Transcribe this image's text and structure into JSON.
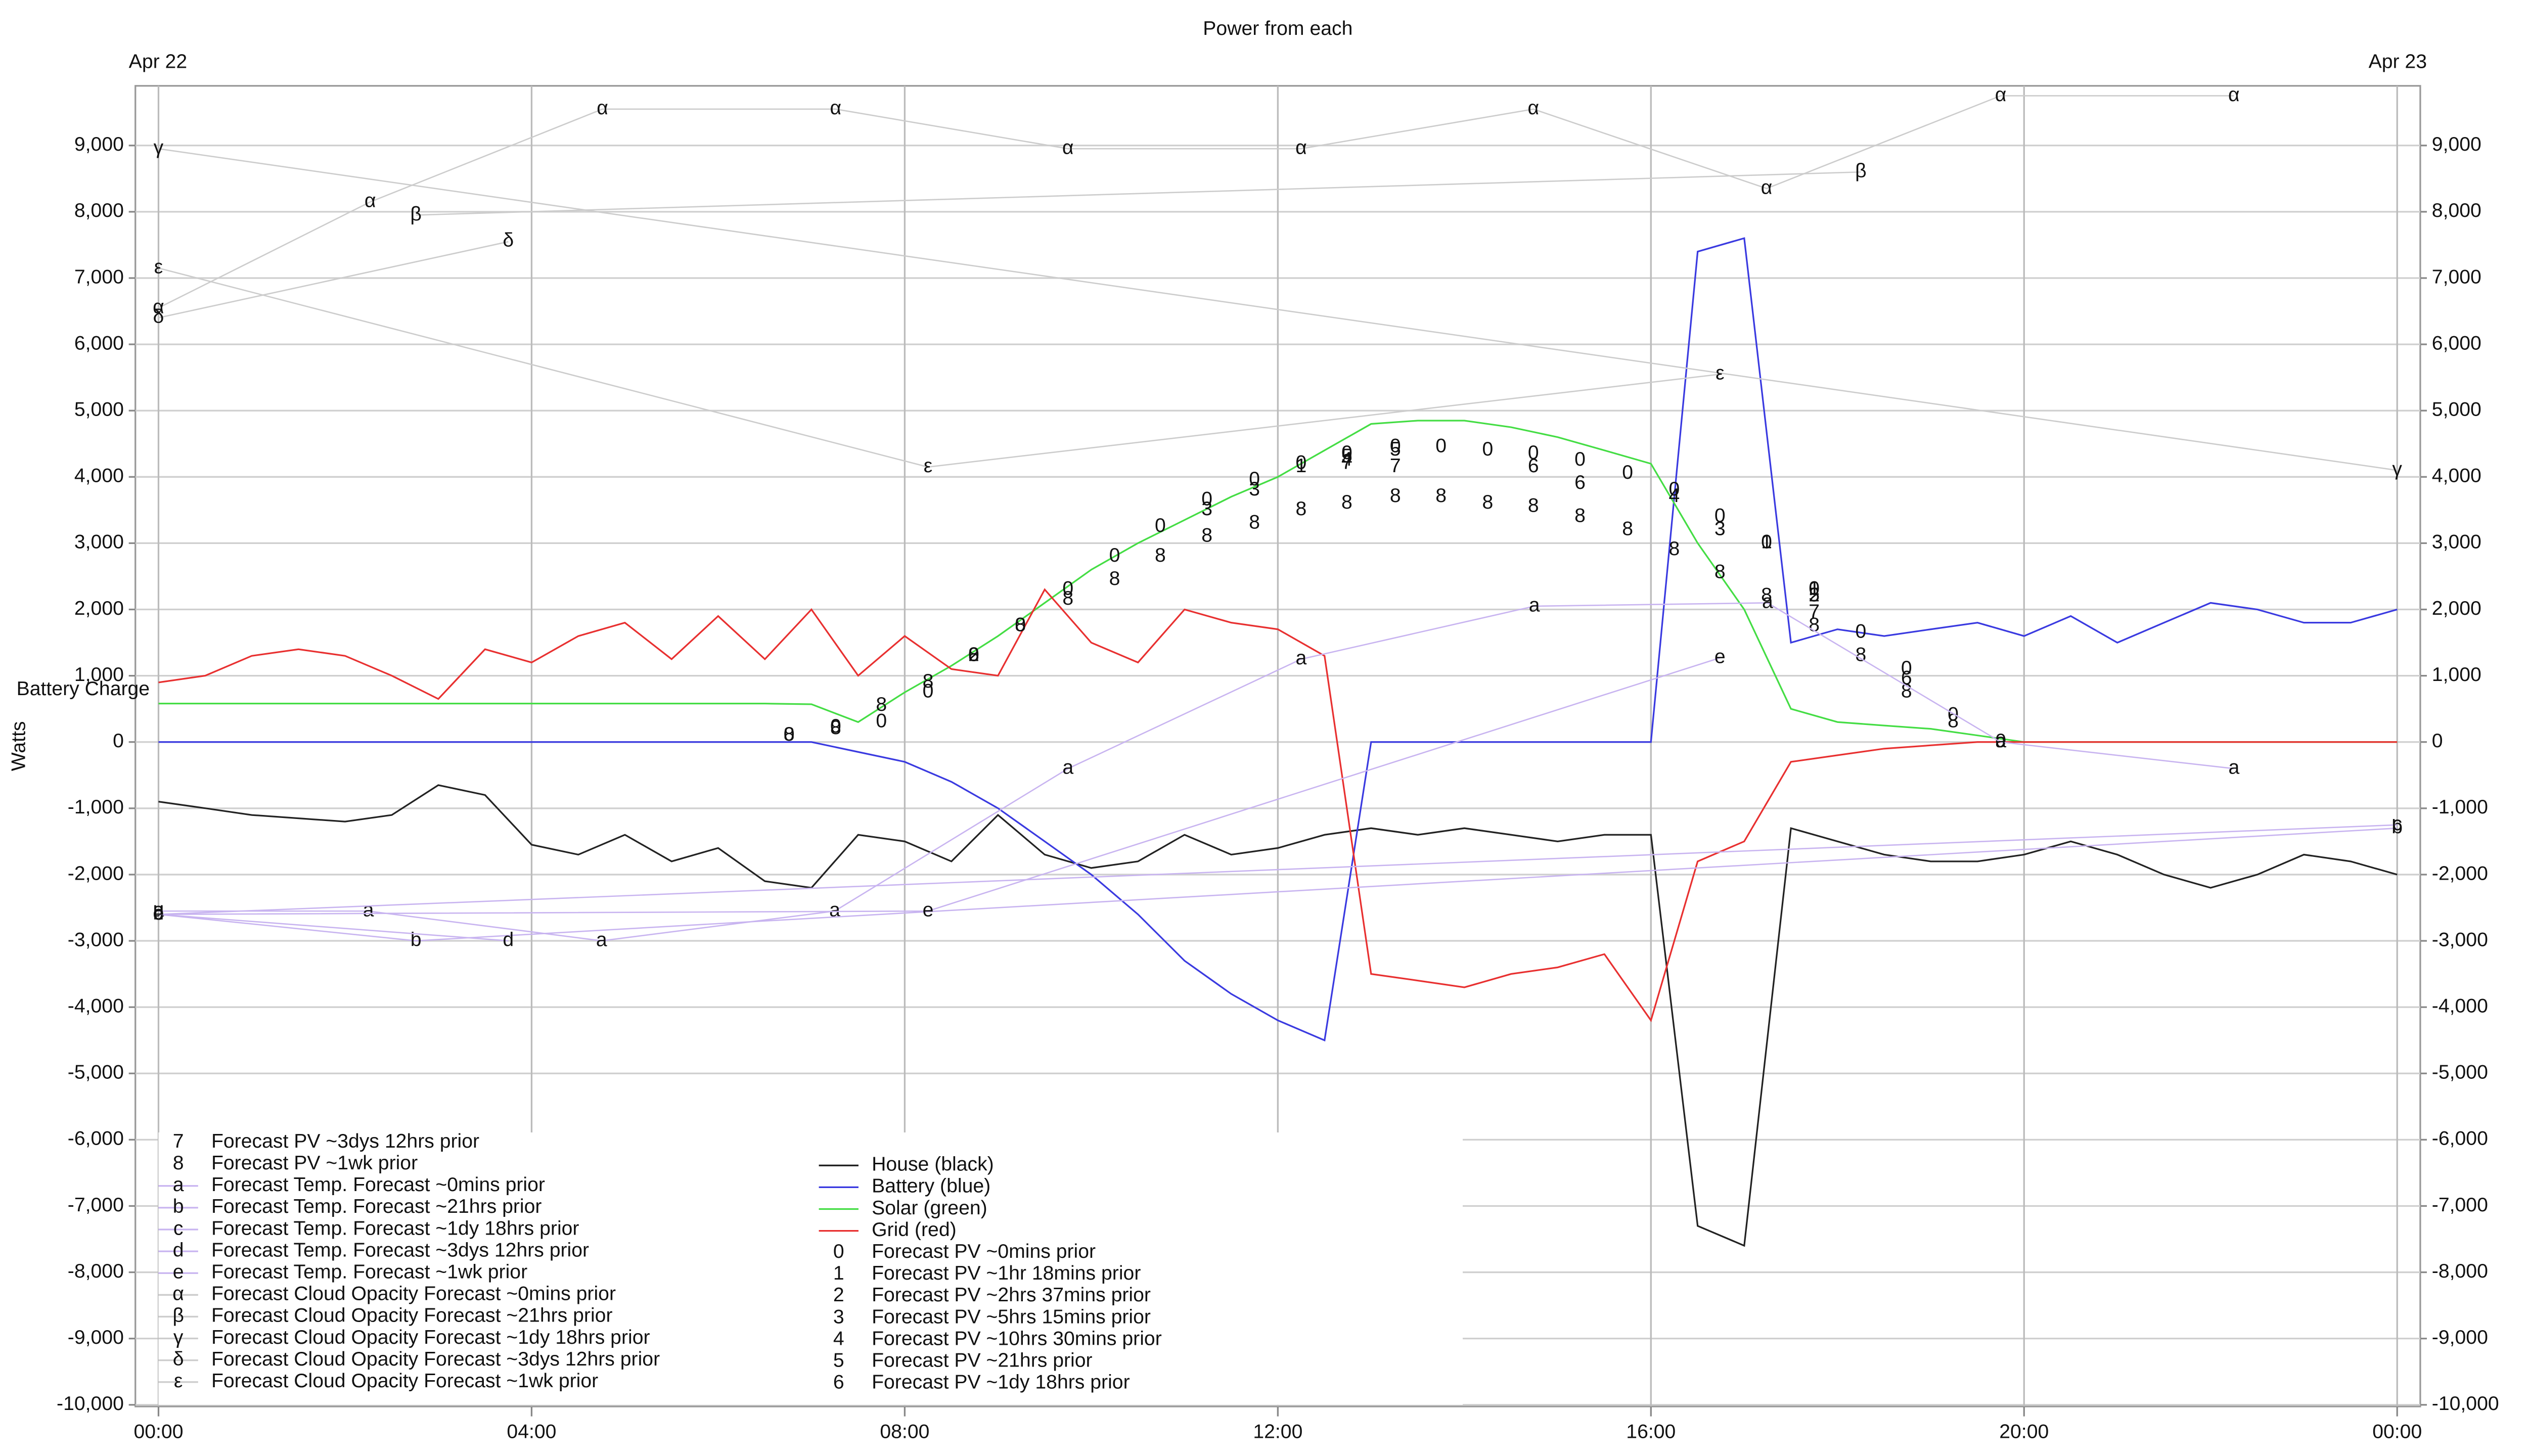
{
  "chart_data": {
    "type": "line",
    "title": "Power from each",
    "date_labels": [
      "Apr 22",
      "Apr 23"
    ],
    "battery_label": "Battery Charge",
    "ylabel": "Watts",
    "xlim": [
      0,
      24
    ],
    "xticks": [
      {
        "value": 0,
        "label": "00:00"
      },
      {
        "value": 4,
        "label": "04:00"
      },
      {
        "value": 8,
        "label": "08:00"
      },
      {
        "value": 12,
        "label": "12:00"
      },
      {
        "value": 16,
        "label": "16:00"
      },
      {
        "value": 20,
        "label": "20:00"
      },
      {
        "value": 24,
        "label": "00:00"
      }
    ],
    "ylim": [
      -10000,
      9900
    ],
    "yticks": [
      {
        "value": -10000,
        "label": "-10,000"
      },
      {
        "value": -9000,
        "label": "-9,000"
      },
      {
        "value": -8000,
        "label": "-8,000"
      },
      {
        "value": -7000,
        "label": "-7,000"
      },
      {
        "value": -6000,
        "label": "-6,000"
      },
      {
        "value": -5000,
        "label": "-5,000"
      },
      {
        "value": -4000,
        "label": "-4,000"
      },
      {
        "value": -3000,
        "label": "-3,000"
      },
      {
        "value": -2000,
        "label": "-2,000"
      },
      {
        "value": -1000,
        "label": "-1,000"
      },
      0,
      {
        "value": 1000,
        "label": "1,000"
      },
      {
        "value": 2000,
        "label": "2,000"
      },
      {
        "value": 3000,
        "label": "3,000"
      },
      {
        "value": 4000,
        "label": "4,000"
      },
      {
        "value": 5000,
        "label": "5,000"
      },
      {
        "value": 6000,
        "label": "6,000"
      },
      {
        "value": 7000,
        "label": "7,000"
      },
      {
        "value": 8000,
        "label": "8,000"
      },
      {
        "value": 9000,
        "label": "9,000"
      }
    ],
    "grid": true,
    "x": [
      0,
      0.5,
      1,
      1.5,
      2,
      2.5,
      3,
      3.5,
      4,
      4.5,
      5,
      5.5,
      6,
      6.5,
      7,
      7.5,
      8,
      8.5,
      9,
      9.5,
      10,
      10.5,
      11,
      11.5,
      12,
      12.5,
      13,
      13.5,
      14,
      14.5,
      15,
      15.5,
      16,
      16.5,
      17,
      17.5,
      18,
      18.5,
      19,
      19.5,
      20,
      20.5,
      21,
      21.5,
      22,
      22.5,
      23,
      23.5,
      24
    ],
    "series": [
      {
        "name": "House (black)",
        "color": "#222222",
        "values": [
          -900,
          -1000,
          -1100,
          -1150,
          -1200,
          -1100,
          -650,
          -800,
          -1550,
          -1700,
          -1400,
          -1800,
          -1600,
          -2100,
          -2200,
          -1400,
          -1500,
          -1800,
          -1100,
          -1700,
          -1900,
          -1800,
          -1400,
          -1700,
          -1600,
          -1400,
          -1300,
          -1400,
          -1300,
          -1400,
          -1500,
          -1400,
          -1400,
          -7300,
          -7600,
          -1300,
          -1500,
          -1700,
          -1800,
          -1800,
          -1700,
          -1500,
          -1700,
          -2000,
          -2200,
          -2000,
          -1700,
          -1800,
          -2000
        ]
      },
      {
        "name": "Battery (blue)",
        "color": "#3a3ae0",
        "values": [
          0,
          0,
          0,
          0,
          0,
          0,
          0,
          0,
          0,
          0,
          0,
          0,
          0,
          0,
          0,
          -150,
          -300,
          -600,
          -1000,
          -1500,
          -2000,
          -2600,
          -3300,
          -3800,
          -4200,
          -4500,
          0,
          0,
          0,
          0,
          0,
          0,
          0,
          7400,
          7600,
          1500,
          1700,
          1600,
          1700,
          1800,
          1600,
          1900,
          1500,
          1800,
          2100,
          2000,
          1800,
          1800,
          2000
        ]
      },
      {
        "name": "Solar (green)",
        "color": "#44dd44",
        "values": [
          580,
          580,
          580,
          580,
          580,
          580,
          580,
          580,
          580,
          580,
          580,
          580,
          580,
          580,
          570,
          300,
          750,
          1150,
          1600,
          2100,
          2600,
          3000,
          3350,
          3700,
          4000,
          4400,
          4800,
          4850,
          4850,
          4750,
          4600,
          4400,
          4200,
          3000,
          2000,
          500,
          300,
          250,
          200,
          100,
          0,
          0,
          0,
          0,
          0,
          0,
          0,
          0,
          0
        ]
      },
      {
        "name": "Grid (red)",
        "color": "#e83030",
        "values": [
          900,
          1000,
          1300,
          1400,
          1300,
          1000,
          650,
          1400,
          1200,
          1600,
          1800,
          1250,
          1900,
          1250,
          2000,
          1000,
          1600,
          1100,
          1000,
          2300,
          1500,
          1200,
          2000,
          1800,
          1700,
          1300,
          -3500,
          -3600,
          -3700,
          -3500,
          -3400,
          -3200,
          -4200,
          -1800,
          -1500,
          -300,
          -200,
          -100,
          -50,
          0,
          0,
          0,
          0,
          0,
          0,
          0,
          0,
          0,
          0
        ]
      },
      {
        "name": "Forecast PV ~0mins prior",
        "marker": "0",
        "x": [
          6.76,
          7.26,
          7.75,
          8.25,
          8.74,
          9.24,
          9.75,
          10.25,
          10.74,
          11.24,
          11.75,
          12.25,
          12.74,
          13.26,
          13.75,
          14.25,
          14.74,
          15.24,
          15.75,
          16.25,
          16.74,
          17.24,
          17.75,
          18.25,
          18.74,
          19.24,
          19.75
        ],
        "values": [
          100,
          220,
          300,
          750,
          1300,
          1750,
          2300,
          2800,
          3250,
          3650,
          3950,
          4200,
          4350,
          4450,
          4450,
          4400,
          4350,
          4250,
          4050,
          3800,
          3400,
          3000,
          2300,
          1650,
          1100,
          400,
          0
        ]
      },
      {
        "name": "Forecast PV ~1hr 18mins prior",
        "marker": "1",
        "x": [
          12.25,
          17.24,
          17.75
        ],
        "values": [
          4150,
          3000,
          2300
        ]
      },
      {
        "name": "Forecast PV ~2hrs 37mins prior",
        "marker": "2",
        "x": [
          8.74,
          17.75
        ],
        "values": [
          1300,
          2200
        ]
      },
      {
        "name": "Forecast PV ~5hrs 15mins prior",
        "marker": "3",
        "x": [
          11.24,
          11.75,
          16.74
        ],
        "values": [
          3500,
          3800,
          3200
        ]
      },
      {
        "name": "Forecast PV ~10hrs 30mins prior",
        "marker": "4",
        "x": [
          12.74,
          16.25
        ],
        "values": [
          4250,
          3700
        ]
      },
      {
        "name": "Forecast PV ~21hrs prior",
        "marker": "5",
        "x": [
          12.74,
          13.26,
          17.75
        ],
        "values": [
          4300,
          4400,
          2200
        ]
      },
      {
        "name": "Forecast PV ~1dy 18hrs prior",
        "marker": "6",
        "x": [
          14.74,
          15.24,
          18.74
        ],
        "values": [
          4150,
          3900,
          950
        ]
      },
      {
        "name": "Forecast PV ~3dys 12hrs prior",
        "marker": "7",
        "x": [
          12.74,
          13.26,
          17.75
        ],
        "values": [
          4200,
          4150,
          1950
        ]
      },
      {
        "name": "Forecast PV ~1wk prior",
        "marker": "8",
        "x": [
          6.76,
          7.26,
          7.75,
          8.25,
          8.74,
          9.24,
          9.75,
          10.25,
          10.74,
          11.24,
          11.75,
          12.25,
          12.74,
          13.26,
          13.75,
          14.25,
          14.74,
          15.24,
          15.75,
          16.25,
          16.74,
          17.24,
          17.75,
          18.25,
          18.74,
          19.24
        ],
        "values": [
          100,
          200,
          550,
          900,
          1300,
          1750,
          2150,
          2450,
          2800,
          3100,
          3300,
          3500,
          3600,
          3700,
          3700,
          3600,
          3550,
          3400,
          3200,
          2900,
          2550,
          2200,
          1750,
          1300,
          750,
          300
        ]
      },
      {
        "name": "Forecast Temp. Forecast ~0mins prior",
        "marker": "a",
        "color": "#c8b4f0",
        "x": [
          0,
          2.25,
          4.75,
          7.25,
          9.75,
          12.25,
          14.75,
          17.25,
          19.75,
          22.25
        ],
        "values": [
          -2550,
          -2550,
          -3000,
          -2550,
          -400,
          1250,
          2050,
          2100,
          0,
          -400
        ]
      },
      {
        "name": "Forecast Temp. Forecast ~21hrs prior",
        "marker": "b",
        "color": "#c8b4f0",
        "x": [
          0,
          2.76,
          24
        ],
        "values": [
          -2600,
          -3000,
          -1300
        ]
      },
      {
        "name": "Forecast Temp. Forecast ~1dy 18hrs prior",
        "marker": "c",
        "color": "#c8b4f0",
        "x": [
          0,
          24
        ],
        "values": [
          -2600,
          -1250
        ]
      },
      {
        "name": "Forecast Temp. Forecast ~3dys 12hrs prior",
        "marker": "d",
        "color": "#c8b4f0",
        "x": [
          0,
          3.75
        ],
        "values": [
          -2600,
          -3000
        ]
      },
      {
        "name": "Forecast Temp. Forecast ~1wk prior",
        "marker": "e",
        "color": "#c8b4f0",
        "x": [
          0,
          8.25,
          16.74
        ],
        "values": [
          -2600,
          -2550,
          1270
        ]
      },
      {
        "name": "Forecast Cloud Opacity Forecast ~0mins prior",
        "marker": "α",
        "color": "#cccccc",
        "x": [
          0,
          2.27,
          4.76,
          7.26,
          9.75,
          12.25,
          14.74,
          17.24,
          19.75,
          22.25
        ],
        "values": [
          6550,
          8150,
          9550,
          9550,
          8950,
          8950,
          9550,
          8350,
          9750,
          9750
        ]
      },
      {
        "name": "Forecast Cloud Opacity Forecast ~21hrs prior",
        "marker": "β",
        "color": "#cccccc",
        "x": [
          2.76,
          18.25
        ],
        "values": [
          7950,
          8600
        ]
      },
      {
        "name": "Forecast Cloud Opacity Forecast ~1dy 18hrs prior",
        "marker": "γ",
        "color": "#cccccc",
        "x": [
          0,
          24
        ],
        "values": [
          8950,
          4100
        ]
      },
      {
        "name": "Forecast Cloud Opacity Forecast ~3dys 12hrs prior",
        "marker": "δ",
        "color": "#cccccc",
        "x": [
          0,
          3.75
        ],
        "values": [
          6400,
          7550
        ]
      },
      {
        "name": "Forecast Cloud Opacity Forecast ~1wk prior",
        "marker": "ε",
        "color": "#cccccc",
        "x": [
          0,
          8.25,
          16.74
        ],
        "values": [
          7150,
          4150,
          5550
        ]
      }
    ]
  }
}
